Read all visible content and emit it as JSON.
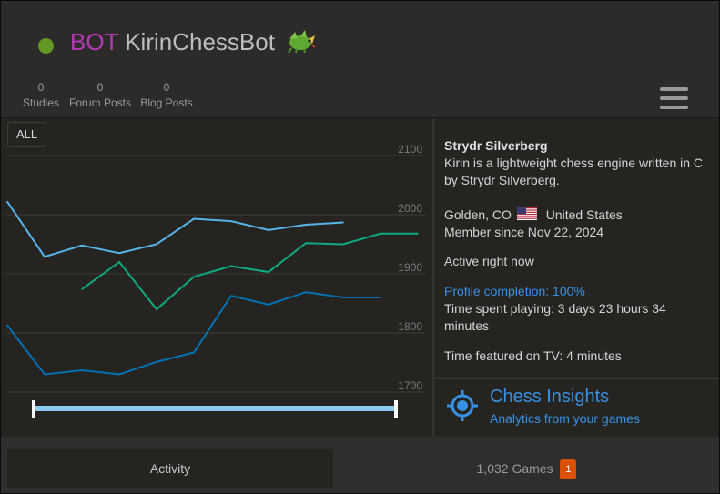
{
  "header": {
    "bot_tag": "BOT",
    "username": "KirinChessBot",
    "stats": [
      {
        "count": "0",
        "label": "Studies"
      },
      {
        "count": "0",
        "label": "Forum Posts"
      },
      {
        "count": "0",
        "label": "Blog Posts"
      }
    ]
  },
  "chart": {
    "range_button": "ALL"
  },
  "chart_data": {
    "type": "line",
    "y_ticks": [
      "2100",
      "2000",
      "1900",
      "1800",
      "1700"
    ],
    "ylim": [
      1690,
      2110
    ],
    "grid": true,
    "colors": [
      "#56b4e9",
      "#0cab7f",
      "#0072b2"
    ],
    "series": [
      {
        "color": "#56b4e9",
        "values": [
          2022,
          1929,
          1948,
          1935,
          1950,
          1993,
          1989,
          1974,
          1983,
          1987
        ]
      },
      {
        "color": "#0cab7f",
        "values": [
          null,
          null,
          1874,
          1920,
          1840,
          1895,
          1913,
          1903,
          1952,
          1950,
          1968,
          1968
        ]
      },
      {
        "color": "#0072b2",
        "values": [
          1813,
          1730,
          1737,
          1730,
          1751,
          1767,
          1863,
          1848,
          1869,
          1860,
          1860
        ]
      }
    ]
  },
  "profile": {
    "display_name": "Strydr Silverberg",
    "bio": "Kirin is a lightweight chess engine written in C by Strydr Silverberg.",
    "location": "Golden, CO",
    "country": "United States",
    "member_since": "Member since Nov 22, 2024",
    "active": "Active right now",
    "completion": "Profile completion: 100%",
    "time_playing": "Time spent playing: 3 days 23 hours 34 minutes",
    "time_tv": "Time featured on TV: 4 minutes",
    "insights_title": "Chess Insights",
    "insights_sub": "Analytics from your games"
  },
  "tabs": {
    "activity": "Activity",
    "games": "1,032 Games",
    "games_badge": "1"
  }
}
